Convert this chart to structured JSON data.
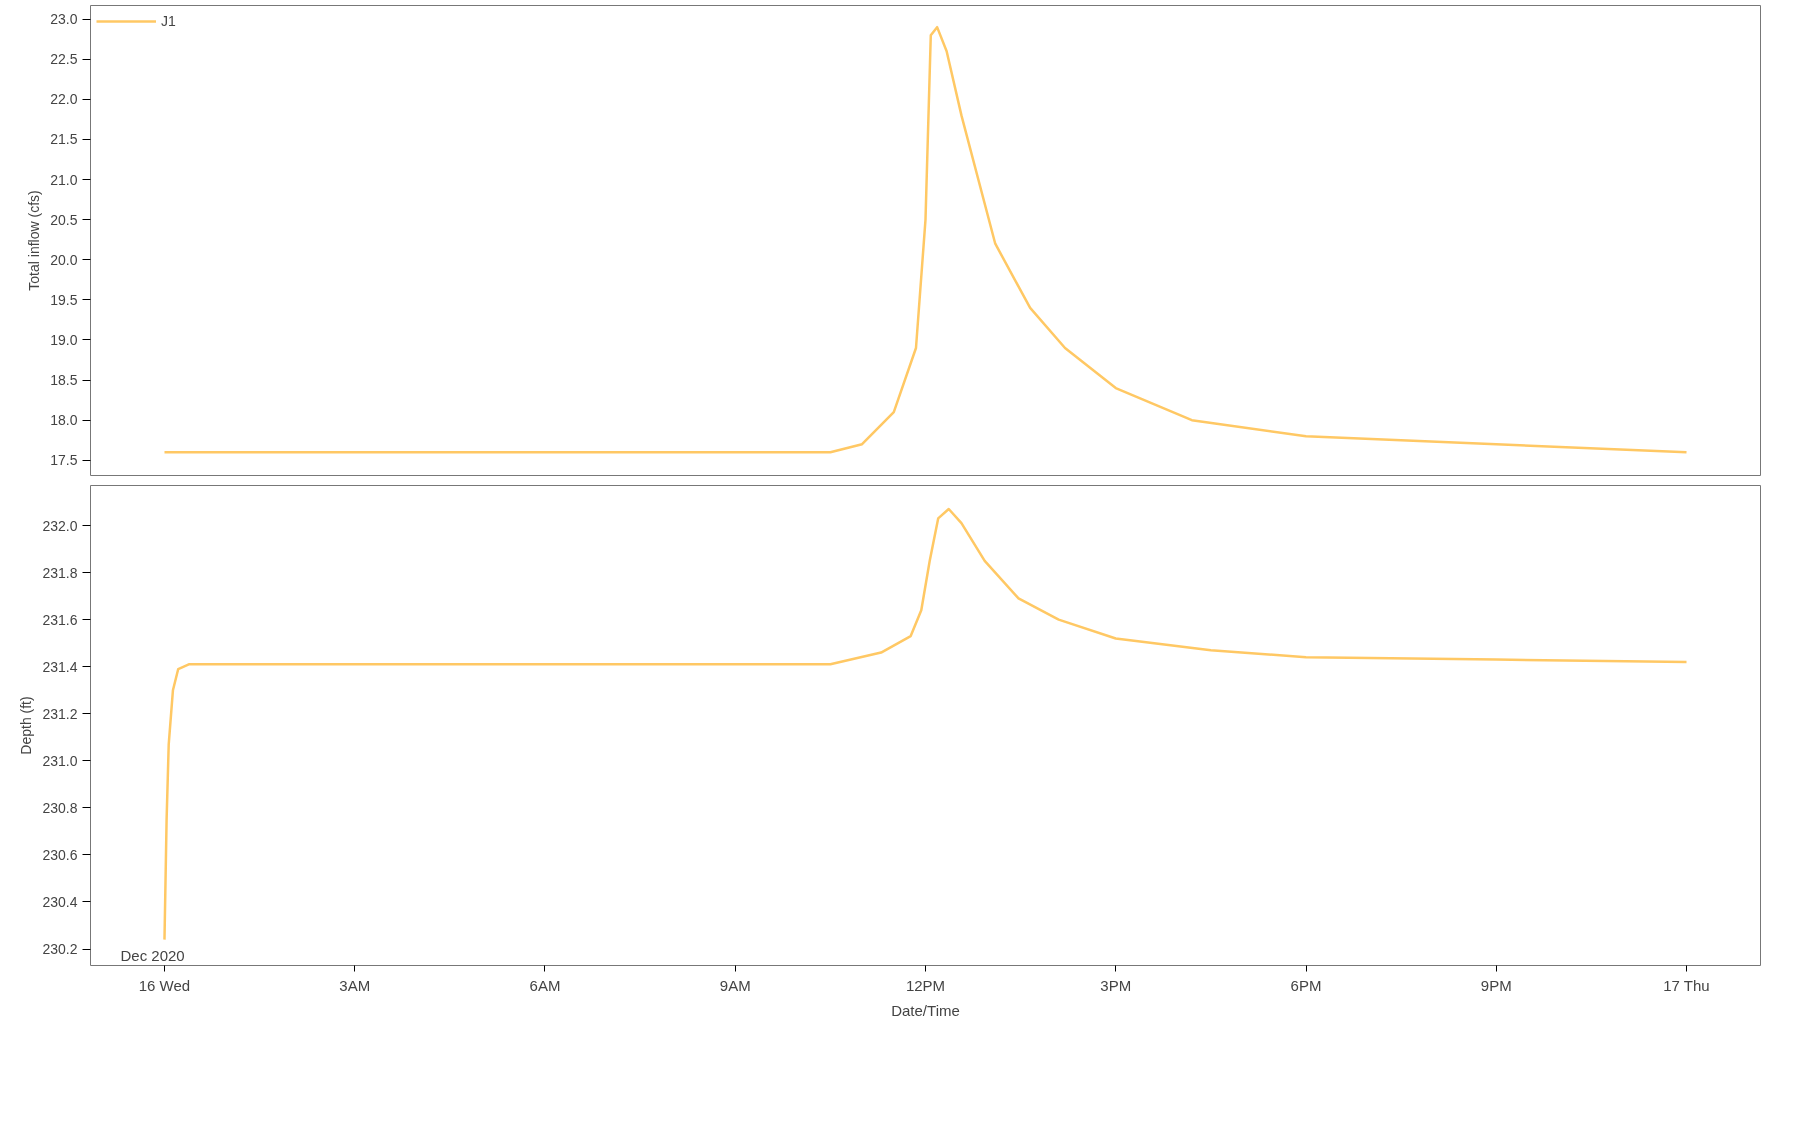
{
  "chart_data": [
    {
      "type": "line",
      "ylabel": "Total inflow (cfs)",
      "legend": "top left",
      "grid": false,
      "tick_labels": "y",
      "line_style": "solid",
      "marker": "none",
      "xlim": [
        "2020-12-15T22:50",
        "2020-12-17T01:10"
      ],
      "ylim": [
        17.31,
        23.17
      ],
      "yticks": [
        {
          "value": 17.5,
          "label": "17.5"
        },
        {
          "value": 18,
          "label": "18.0"
        },
        {
          "value": 18.5,
          "label": "18.5"
        },
        {
          "value": 19,
          "label": "19.0"
        },
        {
          "value": 19.5,
          "label": "19.5"
        },
        {
          "value": 20,
          "label": "20.0"
        },
        {
          "value": 20.5,
          "label": "20.5"
        },
        {
          "value": 21,
          "label": "21.0"
        },
        {
          "value": 21.5,
          "label": "21.5"
        },
        {
          "value": 22,
          "label": "22.0"
        },
        {
          "value": 22.5,
          "label": "22.5"
        },
        {
          "value": 23,
          "label": "23.0"
        }
      ],
      "series": [
        {
          "name": "J1",
          "color": "#ffc864",
          "x": [
            "2020-12-16T00:00",
            "2020-12-16T06:00",
            "2020-12-16T10:30",
            "2020-12-16T11:00",
            "2020-12-16T11:30",
            "2020-12-16T11:51",
            "2020-12-16T12:00",
            "2020-12-16T12:05",
            "2020-12-16T12:11",
            "2020-12-16T12:20",
            "2020-12-16T12:34",
            "2020-12-16T13:06",
            "2020-12-16T13:39",
            "2020-12-16T14:12",
            "2020-12-16T15:00",
            "2020-12-16T16:12",
            "2020-12-16T18:00",
            "2020-12-16T21:00",
            "2020-12-17T00:00"
          ],
          "values": [
            17.6,
            17.6,
            17.6,
            17.7,
            18.1,
            18.9,
            20.5,
            22.8,
            22.9,
            22.6,
            21.8,
            20.2,
            19.4,
            18.9,
            18.4,
            18.0,
            17.8,
            17.7,
            17.6
          ]
        }
      ]
    },
    {
      "type": "line",
      "ylabel": "Depth (ft)",
      "xlabel": "Date/Time",
      "grid": false,
      "line_style": "solid",
      "marker": "none",
      "annotations": [
        "Dec 2020"
      ],
      "xlim": [
        "2020-12-15T22:50",
        "2020-12-17T01:10"
      ],
      "xticks": [
        {
          "value": "2020-12-16T00:00",
          "label": "16 Wed"
        },
        {
          "value": "2020-12-16T03:00",
          "label": "3AM"
        },
        {
          "value": "2020-12-16T06:00",
          "label": "6AM"
        },
        {
          "value": "2020-12-16T09:00",
          "label": "9AM"
        },
        {
          "value": "2020-12-16T12:00",
          "label": "12PM"
        },
        {
          "value": "2020-12-16T15:00",
          "label": "3PM"
        },
        {
          "value": "2020-12-16T18:00",
          "label": "6PM"
        },
        {
          "value": "2020-12-16T21:00",
          "label": "9PM"
        },
        {
          "value": "2020-12-17T00:00",
          "label": "17 Thu"
        }
      ],
      "ylim": [
        230.13,
        232.17
      ],
      "yticks": [
        {
          "value": 230.2,
          "label": "230.2"
        },
        {
          "value": 230.4,
          "label": "230.4"
        },
        {
          "value": 230.6,
          "label": "230.6"
        },
        {
          "value": 230.8,
          "label": "230.8"
        },
        {
          "value": 231,
          "label": "231.0"
        },
        {
          "value": 231.2,
          "label": "231.2"
        },
        {
          "value": 231.4,
          "label": "231.4"
        },
        {
          "value": 231.6,
          "label": "231.6"
        },
        {
          "value": 231.8,
          "label": "231.8"
        },
        {
          "value": 232,
          "label": "232.0"
        }
      ],
      "series": [
        {
          "color": "#ffc864",
          "x": [
            "2020-12-16T00:00",
            "2020-12-16T00:02",
            "2020-12-16T00:04",
            "2020-12-16T00:08",
            "2020-12-16T00:13",
            "2020-12-16T00:23",
            "2020-12-16T06:00",
            "2020-12-16T10:30",
            "2020-12-16T11:18",
            "2020-12-16T11:46",
            "2020-12-16T11:56",
            "2020-12-16T12:04",
            "2020-12-16T12:12",
            "2020-12-16T12:22",
            "2020-12-16T12:34",
            "2020-12-16T12:56",
            "2020-12-16T13:28",
            "2020-12-16T14:06",
            "2020-12-16T15:00",
            "2020-12-16T16:30",
            "2020-12-16T18:00",
            "2020-12-16T21:00",
            "2020-12-17T00:00"
          ],
          "values": [
            230.24,
            230.75,
            231.07,
            231.3,
            231.39,
            231.41,
            231.41,
            231.41,
            231.46,
            231.53,
            231.64,
            231.85,
            232.03,
            232.07,
            232.01,
            231.85,
            231.69,
            231.6,
            231.52,
            231.47,
            231.44,
            231.43,
            231.42
          ]
        }
      ]
    }
  ]
}
